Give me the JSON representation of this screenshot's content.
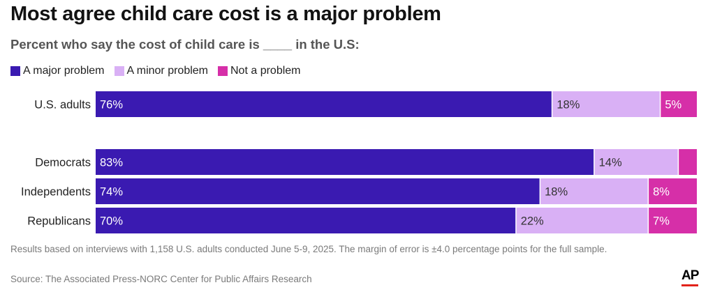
{
  "chart_data": {
    "type": "bar",
    "orientation": "horizontal",
    "stacked": true,
    "title": "Most agree child care cost is a major problem",
    "subtitle": "Percent who say the cost of child care is ____ in the U.S:",
    "categories": [
      "U.S. adults",
      "Democrats",
      "Independents",
      "Republicans"
    ],
    "series": [
      {
        "name": "A major problem",
        "color": "#3a1ab1",
        "values": [
          76,
          83,
          74,
          70
        ],
        "labels": [
          "76%",
          "83%",
          "74%",
          "70%"
        ]
      },
      {
        "name": "A minor problem",
        "color": "#d9b0f5",
        "values": [
          18,
          14,
          18,
          22
        ],
        "labels": [
          "18%",
          "14%",
          "18%",
          "22%"
        ]
      },
      {
        "name": "Not a problem",
        "color": "#d62fa8",
        "values": [
          5,
          2,
          8,
          7
        ],
        "labels": [
          "5%",
          "",
          "8%",
          "7%"
        ]
      }
    ],
    "xlim": [
      0,
      100
    ],
    "grid": false,
    "legend": "top-left"
  },
  "footer": {
    "note": "Results based on interviews with 1,158 U.S. adults conducted June 5-9, 2025. The margin of error is ±4.0 percentage points for the full sample.",
    "source": "Source: The Associated Press-NORC Center for Public Affairs Research",
    "logo": "AP"
  }
}
